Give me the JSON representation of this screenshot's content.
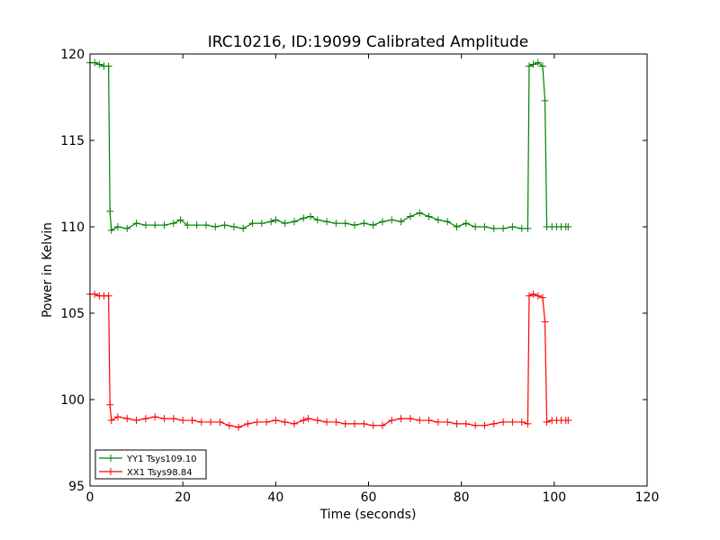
{
  "chart_data": {
    "type": "line",
    "title": "IRC10216, ID:19099 Calibrated Amplitude",
    "xlabel": "Time (seconds)",
    "ylabel": "Power in Kelvin",
    "xlim": [
      0,
      120
    ],
    "ylim": [
      95,
      120
    ],
    "xticks": [
      0,
      20,
      40,
      60,
      80,
      100,
      120
    ],
    "yticks": [
      95,
      100,
      105,
      110,
      115,
      120
    ],
    "xtick_labels": [
      "0",
      "20",
      "40",
      "60",
      "80",
      "100",
      "120"
    ],
    "ytick_labels": [
      "95",
      "100",
      "105",
      "110",
      "115",
      "120"
    ],
    "grid": false,
    "legend_position": "bottom-left",
    "series": [
      {
        "name": "YY1 Tsys109.10",
        "color": "#008000",
        "marker": "+",
        "points": [
          [
            0,
            119.5
          ],
          [
            1,
            119.5
          ],
          [
            2,
            119.4
          ],
          [
            3,
            119.3
          ],
          [
            4,
            119.3
          ],
          [
            4.3,
            110.9
          ],
          [
            4.6,
            109.8
          ],
          [
            6,
            110.0
          ],
          [
            8,
            109.9
          ],
          [
            10,
            110.2
          ],
          [
            12,
            110.1
          ],
          [
            14,
            110.1
          ],
          [
            16,
            110.1
          ],
          [
            18,
            110.2
          ],
          [
            19.5,
            110.4
          ],
          [
            21,
            110.1
          ],
          [
            23,
            110.1
          ],
          [
            25,
            110.1
          ],
          [
            27,
            110.0
          ],
          [
            29,
            110.1
          ],
          [
            31,
            110.0
          ],
          [
            33,
            109.9
          ],
          [
            35,
            110.2
          ],
          [
            37,
            110.2
          ],
          [
            39,
            110.3
          ],
          [
            40,
            110.4
          ],
          [
            42,
            110.2
          ],
          [
            44,
            110.3
          ],
          [
            46,
            110.5
          ],
          [
            47.5,
            110.6
          ],
          [
            49,
            110.4
          ],
          [
            51,
            110.3
          ],
          [
            53,
            110.2
          ],
          [
            55,
            110.2
          ],
          [
            57,
            110.1
          ],
          [
            59,
            110.2
          ],
          [
            61,
            110.1
          ],
          [
            63,
            110.3
          ],
          [
            65,
            110.4
          ],
          [
            67,
            110.3
          ],
          [
            69,
            110.6
          ],
          [
            71,
            110.8
          ],
          [
            73,
            110.6
          ],
          [
            75,
            110.4
          ],
          [
            77,
            110.3
          ],
          [
            79,
            110.0
          ],
          [
            81,
            110.2
          ],
          [
            83,
            110.0
          ],
          [
            85,
            110.0
          ],
          [
            87,
            109.9
          ],
          [
            89,
            109.9
          ],
          [
            91,
            110.0
          ],
          [
            93,
            109.9
          ],
          [
            94.3,
            109.9
          ],
          [
            94.6,
            119.3
          ],
          [
            95.5,
            119.4
          ],
          [
            96.5,
            119.5
          ],
          [
            97.5,
            119.3
          ],
          [
            98.0,
            117.3
          ],
          [
            98.4,
            110.0
          ],
          [
            99.5,
            110.0
          ],
          [
            100.5,
            110.0
          ],
          [
            101.5,
            110.0
          ],
          [
            102.5,
            110.0
          ],
          [
            103,
            110.0
          ]
        ]
      },
      {
        "name": "XX1 Tsys98.84",
        "color": "#ff0000",
        "marker": "+",
        "points": [
          [
            0,
            106.1
          ],
          [
            1,
            106.1
          ],
          [
            2,
            106.0
          ],
          [
            3,
            106.0
          ],
          [
            4,
            106.0
          ],
          [
            4.3,
            99.7
          ],
          [
            4.6,
            98.8
          ],
          [
            6,
            99.0
          ],
          [
            8,
            98.9
          ],
          [
            10,
            98.8
          ],
          [
            12,
            98.9
          ],
          [
            14,
            99.0
          ],
          [
            16,
            98.9
          ],
          [
            18,
            98.9
          ],
          [
            20,
            98.8
          ],
          [
            22,
            98.8
          ],
          [
            24,
            98.7
          ],
          [
            26,
            98.7
          ],
          [
            28,
            98.7
          ],
          [
            30,
            98.5
          ],
          [
            32,
            98.4
          ],
          [
            34,
            98.6
          ],
          [
            36,
            98.7
          ],
          [
            38,
            98.7
          ],
          [
            40,
            98.8
          ],
          [
            42,
            98.7
          ],
          [
            44,
            98.6
          ],
          [
            46,
            98.8
          ],
          [
            47,
            98.9
          ],
          [
            49,
            98.8
          ],
          [
            51,
            98.7
          ],
          [
            53,
            98.7
          ],
          [
            55,
            98.6
          ],
          [
            57,
            98.6
          ],
          [
            59,
            98.6
          ],
          [
            61,
            98.5
          ],
          [
            63,
            98.5
          ],
          [
            65,
            98.8
          ],
          [
            67,
            98.9
          ],
          [
            69,
            98.9
          ],
          [
            71,
            98.8
          ],
          [
            73,
            98.8
          ],
          [
            75,
            98.7
          ],
          [
            77,
            98.7
          ],
          [
            79,
            98.6
          ],
          [
            81,
            98.6
          ],
          [
            83,
            98.5
          ],
          [
            85,
            98.5
          ],
          [
            87,
            98.6
          ],
          [
            89,
            98.7
          ],
          [
            91,
            98.7
          ],
          [
            93,
            98.7
          ],
          [
            94.3,
            98.6
          ],
          [
            94.6,
            106.0
          ],
          [
            95.5,
            106.1
          ],
          [
            96.5,
            106.0
          ],
          [
            97.5,
            105.9
          ],
          [
            98.0,
            104.5
          ],
          [
            98.4,
            98.7
          ],
          [
            99.5,
            98.8
          ],
          [
            100.5,
            98.8
          ],
          [
            101.5,
            98.8
          ],
          [
            102.5,
            98.8
          ],
          [
            103,
            98.8
          ]
        ]
      }
    ]
  }
}
